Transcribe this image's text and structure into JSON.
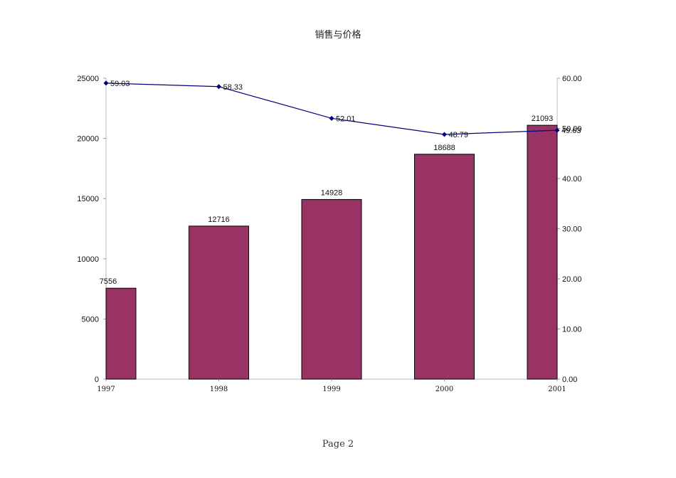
{
  "chart_data": {
    "type": "bar",
    "title": "销售与价格",
    "categories": [
      "1997",
      "1998",
      "1999",
      "2000",
      "2001"
    ],
    "series": [
      {
        "type": "bar",
        "axis": "left",
        "values": [
          7556,
          12716,
          14928,
          18688,
          21093
        ],
        "color": "#993366"
      },
      {
        "type": "line",
        "axis": "right",
        "values": [
          59.03,
          58.33,
          52.01,
          48.79,
          49.63
        ],
        "color": "#000080"
      }
    ],
    "left_axis": {
      "ylim": [
        0,
        25000
      ],
      "ticks": [
        "0",
        "5000",
        "10000",
        "15000",
        "20000",
        "25000"
      ]
    },
    "right_axis": {
      "ylim": [
        0,
        60
      ],
      "ticks": [
        "0.00",
        "10.00",
        "20.00",
        "30.00",
        "40.00",
        "50.00",
        "60.00"
      ]
    },
    "bar_labels": [
      "7556",
      "12716",
      "14928",
      "18688",
      "21093"
    ],
    "line_labels": [
      "59.03",
      "58.33",
      "52.01",
      "48.79",
      "49.63"
    ],
    "grid": false,
    "legend": "none"
  },
  "footer": {
    "page_label": "Page 2"
  }
}
